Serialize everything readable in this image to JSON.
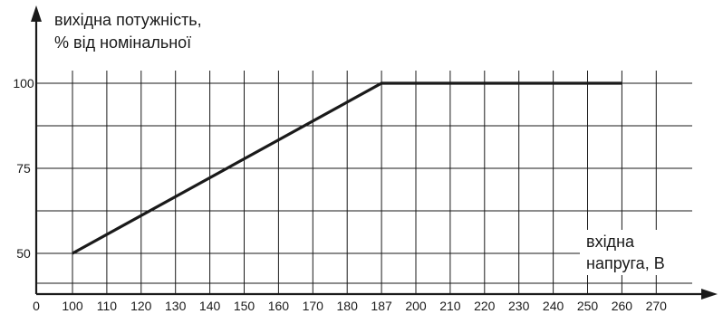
{
  "chart_data": {
    "type": "line",
    "ylabel_lines": [
      "вихідна потужність,",
      "% від номінальної"
    ],
    "xlabel_lines": [
      "вхідна",
      "напруга, В"
    ],
    "x_ticks": [
      "0",
      "100",
      "110",
      "120",
      "130",
      "140",
      "150",
      "160",
      "170",
      "180",
      "187",
      "200",
      "210",
      "220",
      "230",
      "240",
      "250",
      "260",
      "270"
    ],
    "y_ticks": [
      "50",
      "75",
      "100"
    ],
    "series": [
      {
        "points": [
          {
            "x": 100,
            "y": 50
          },
          {
            "x": 187,
            "y": 100
          },
          {
            "x": 260,
            "y": 100
          }
        ]
      }
    ],
    "grid": true,
    "y_range": [
      40,
      110
    ],
    "colors": {
      "line": "#1a1a1a",
      "background": "#ffffff"
    }
  }
}
